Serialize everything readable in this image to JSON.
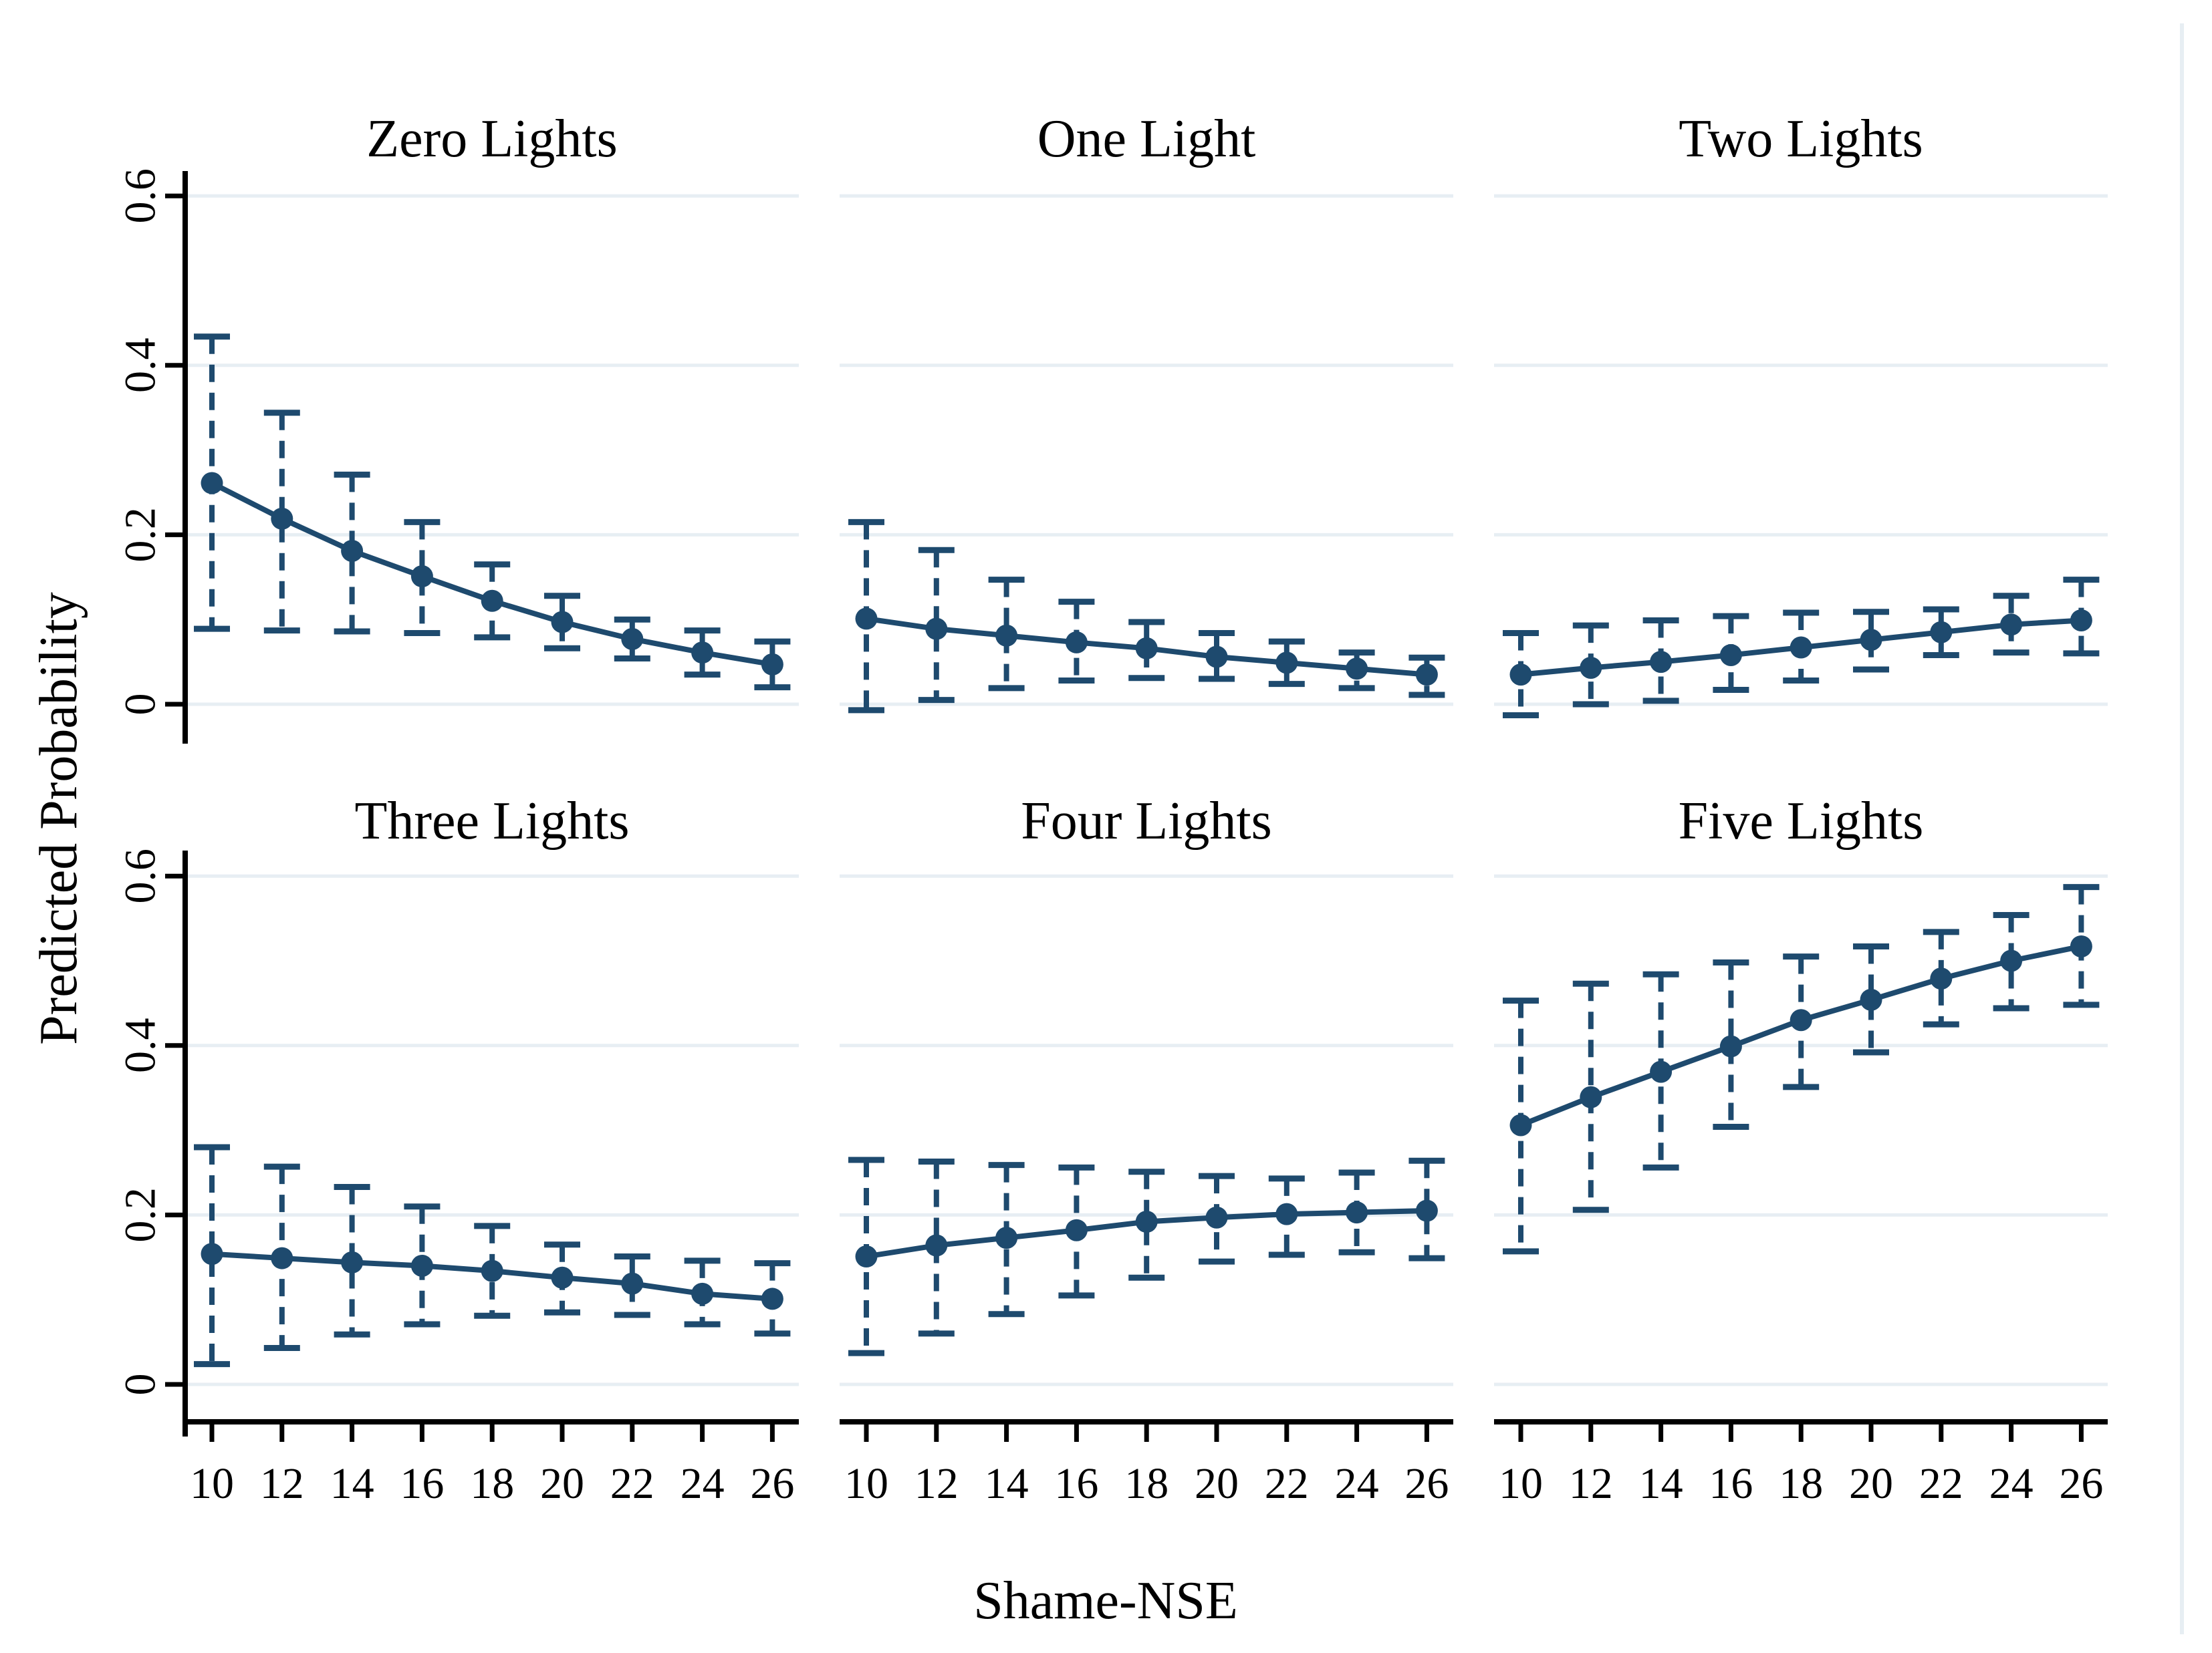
{
  "chart_data": {
    "type": "line",
    "title": "",
    "xlabel": "Shame-NSE",
    "ylabel": "Predicted Probability",
    "panel_layout": {
      "rows": 2,
      "cols": 3
    },
    "x": [
      10,
      12,
      14,
      16,
      18,
      20,
      22,
      24,
      26
    ],
    "xtick_labels": [
      "10",
      "12",
      "14",
      "16",
      "18",
      "20",
      "22",
      "24",
      "26"
    ],
    "ylim": [
      0,
      0.6
    ],
    "yticks": [
      0,
      0.2,
      0.4,
      0.6
    ],
    "ytick_labels": [
      "0",
      "0.2",
      "0.4",
      "0.6"
    ],
    "grid": true,
    "error_bar_style": "dashed vertical spike with horizontal caps",
    "marker_style": "filled circle",
    "colors": {
      "series": "#1e4a6e",
      "grid": "#e7eef3",
      "axis": "#000000",
      "text": "#000000",
      "background": "#ffffff"
    },
    "series": [
      {
        "panel": "Zero Lights",
        "mean": [
          0.261,
          0.219,
          0.181,
          0.151,
          0.122,
          0.097,
          0.077,
          0.061,
          0.047
        ],
        "ci_lower": [
          0.089,
          0.087,
          0.086,
          0.084,
          0.079,
          0.066,
          0.054,
          0.035,
          0.02
        ],
        "ci_upper": [
          0.434,
          0.344,
          0.271,
          0.215,
          0.165,
          0.128,
          0.1,
          0.087,
          0.074
        ]
      },
      {
        "panel": "One Light",
        "mean": [
          0.101,
          0.089,
          0.081,
          0.073,
          0.066,
          0.056,
          0.049,
          0.042,
          0.035
        ],
        "ci_lower": [
          -0.007,
          0.005,
          0.019,
          0.028,
          0.031,
          0.03,
          0.024,
          0.019,
          0.011
        ],
        "ci_upper": [
          0.215,
          0.182,
          0.147,
          0.121,
          0.097,
          0.084,
          0.074,
          0.061,
          0.055
        ]
      },
      {
        "panel": "Two Lights",
        "mean": [
          0.035,
          0.043,
          0.05,
          0.058,
          0.067,
          0.076,
          0.085,
          0.094,
          0.099
        ],
        "ci_lower": [
          -0.013,
          0.0,
          0.004,
          0.017,
          0.028,
          0.041,
          0.058,
          0.061,
          0.06
        ],
        "ci_upper": [
          0.084,
          0.093,
          0.099,
          0.104,
          0.108,
          0.109,
          0.112,
          0.128,
          0.147
        ]
      },
      {
        "panel": "Three Lights",
        "mean": [
          0.154,
          0.149,
          0.144,
          0.14,
          0.134,
          0.126,
          0.119,
          0.107,
          0.101
        ],
        "ci_lower": [
          0.024,
          0.043,
          0.059,
          0.071,
          0.081,
          0.085,
          0.082,
          0.071,
          0.06
        ],
        "ci_upper": [
          0.28,
          0.257,
          0.233,
          0.21,
          0.187,
          0.165,
          0.151,
          0.146,
          0.143
        ]
      },
      {
        "panel": "Four Lights",
        "mean": [
          0.151,
          0.164,
          0.173,
          0.182,
          0.192,
          0.197,
          0.201,
          0.203,
          0.205
        ],
        "ci_lower": [
          0.037,
          0.06,
          0.083,
          0.105,
          0.126,
          0.145,
          0.153,
          0.156,
          0.149
        ],
        "ci_upper": [
          0.265,
          0.263,
          0.259,
          0.256,
          0.251,
          0.246,
          0.243,
          0.25,
          0.264
        ]
      },
      {
        "panel": "Five Lights",
        "mean": [
          0.306,
          0.339,
          0.369,
          0.399,
          0.43,
          0.454,
          0.479,
          0.5,
          0.517
        ],
        "ci_lower": [
          0.157,
          0.206,
          0.256,
          0.304,
          0.351,
          0.392,
          0.425,
          0.444,
          0.448
        ],
        "ci_upper": [
          0.453,
          0.473,
          0.484,
          0.498,
          0.505,
          0.517,
          0.534,
          0.554,
          0.587
        ]
      }
    ]
  }
}
